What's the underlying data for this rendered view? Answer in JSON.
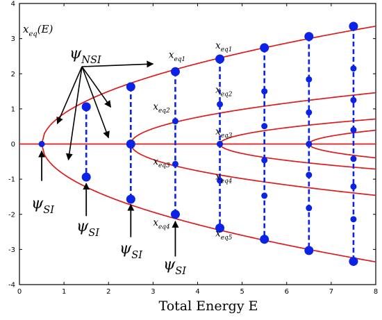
{
  "chart_data": {
    "type": "line",
    "title": "",
    "xlabel": "Total Energy  E",
    "ylabel": "",
    "xlim": [
      0,
      8
    ],
    "ylim": [
      -4,
      4
    ],
    "xticks": [
      0,
      1,
      2,
      3,
      4,
      5,
      6,
      7,
      8
    ],
    "yticks": [
      -4,
      -3,
      -2,
      -1,
      0,
      1,
      2,
      3,
      4
    ],
    "grid": false,
    "colors": {
      "curve": "#e0191b",
      "marker": "#0a23e6",
      "dashed": "#0a23e6",
      "text": "#000000"
    },
    "curves": [
      {
        "name": "",
        "bifurcation_E": 0.5,
        "formula": "+sqrt(1.5*(E-0.5))",
        "range": [
          0.5,
          8
        ]
      },
      {
        "name": "",
        "bifurcation_E": 0.5,
        "formula": "-sqrt(1.5*(E-0.5))",
        "range": [
          0.5,
          8
        ]
      },
      {
        "name": "",
        "bifurcation_E": 2.5,
        "formula": "+sqrt(0.3875*(E-2.5))",
        "range": [
          2.5,
          8
        ]
      },
      {
        "name": "",
        "bifurcation_E": 2.5,
        "formula": "-sqrt(0.3875*(E-2.5))",
        "range": [
          2.5,
          8
        ]
      },
      {
        "name": "",
        "bifurcation_E": 4.5,
        "formula": "+sqrt(0.145*(E-4.5))",
        "range": [
          4.5,
          8
        ]
      },
      {
        "name": "",
        "bifurcation_E": 4.5,
        "formula": "-sqrt(0.145*(E-4.5))",
        "range": [
          4.5,
          8
        ]
      },
      {
        "name": "",
        "bifurcation_E": 6.5,
        "formula": "+sqrt(0.103*(E-6.5))",
        "range": [
          6.5,
          8
        ]
      },
      {
        "name": "",
        "bifurcation_E": 6.5,
        "formula": "-sqrt(0.103*(E-6.5))",
        "range": [
          6.5,
          8
        ]
      },
      {
        "name": "",
        "formula": "0",
        "range": [
          0,
          8
        ]
      }
    ],
    "branch_points": [
      {
        "E": 0.5,
        "x": 0
      },
      {
        "E": 2.5,
        "x": 0
      },
      {
        "E": 4.5,
        "x": 0
      },
      {
        "E": 6.5,
        "x": 0
      }
    ],
    "dashed_columns": [
      {
        "E": 1.5,
        "points_large": [
          1.06,
          -0.94
        ],
        "points_small": []
      },
      {
        "E": 2.5,
        "points_large": [
          1.63,
          0,
          -1.57
        ],
        "points_small": []
      },
      {
        "E": 3.5,
        "points_large": [
          2.06,
          -2.0
        ],
        "points_small": [
          0.65,
          -0.57
        ]
      },
      {
        "E": 4.5,
        "points_large": [
          2.42,
          -2.39
        ],
        "points_small": [
          1.13,
          0,
          -1.04
        ]
      },
      {
        "E": 5.5,
        "points_large": [
          2.74,
          -2.71
        ],
        "points_small": [
          1.5,
          0.51,
          -0.46,
          -1.47
        ]
      },
      {
        "E": 6.5,
        "points_large": [
          3.06,
          -3.03
        ],
        "points_small": [
          1.84,
          0.9,
          0,
          -0.88,
          -1.82
        ]
      },
      {
        "E": 7.5,
        "points_large": [
          3.35,
          -3.34
        ],
        "points_small": [
          2.15,
          1.25,
          0.4,
          -0.42,
          -1.21,
          -2.14
        ]
      }
    ],
    "annotations": {
      "xeq_title": "x",
      "xeq_title_sub": "eq",
      "xeq_title_tail": "(E)",
      "psi_nsi": "ψ",
      "psi_nsi_sub": "NSI",
      "psi_si": "ψ",
      "psi_si_sub": "SI",
      "xeq": "x",
      "xeq_sub_prefix": "eq",
      "branch_labels": [
        {
          "text": "1",
          "E": 3.35,
          "x": 2.45
        },
        {
          "text": "1",
          "E": 4.4,
          "x": 2.72
        },
        {
          "text": "2",
          "E": 3.0,
          "x": 0.98
        },
        {
          "text": "2",
          "E": 4.4,
          "x": 1.45
        },
        {
          "text": "3",
          "E": 4.4,
          "x": 0.27
        },
        {
          "text": "3",
          "E": 3.0,
          "x": -0.58
        },
        {
          "text": "4",
          "E": 4.4,
          "x": -1.02
        },
        {
          "text": "4",
          "E": 3.0,
          "x": -2.32
        },
        {
          "text": "5",
          "E": 4.4,
          "x": -2.63
        }
      ]
    }
  }
}
